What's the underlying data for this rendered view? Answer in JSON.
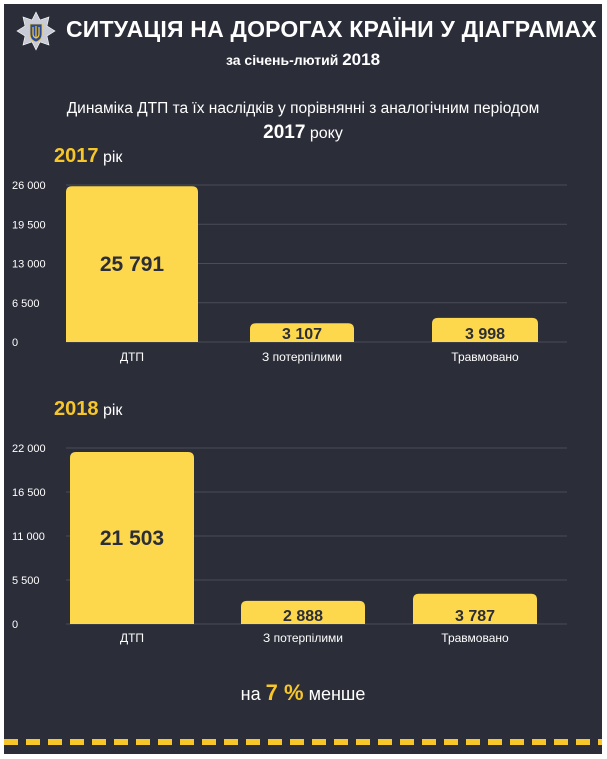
{
  "header": {
    "title": "СИТУАЦІЯ НА ДОРОГАХ КРАЇНИ У ДІАГРАМАХ",
    "period_prefix": "за січень-лютий",
    "period_year": "2018",
    "logo_icon": "police-trident-badge-icon"
  },
  "subtitle": {
    "line1": "Динаміка ДТП та їх наслідків  у порівнянні з аналогічним періодом",
    "year": "2017",
    "suffix": "року"
  },
  "charts": [
    {
      "year": "2017",
      "unit": "рік"
    },
    {
      "year": "2018",
      "unit": "рік"
    }
  ],
  "chart_data": [
    {
      "type": "bar",
      "title": "2017 рік",
      "categories": [
        "ДТП",
        "З потерпілими",
        "Травмовано"
      ],
      "values": [
        25791,
        3107,
        3998
      ],
      "value_labels": [
        "25 791",
        "3 107",
        "3 998"
      ],
      "ylim": [
        0,
        26000
      ],
      "yticks": [
        0,
        6500,
        13000,
        19500,
        26000
      ],
      "ytick_labels": [
        "0",
        "6 500",
        "13 000",
        "19 500",
        "26 000"
      ],
      "grid": true,
      "xlabel": "",
      "ylabel": ""
    },
    {
      "type": "bar",
      "title": "2018 рік",
      "categories": [
        "ДТП",
        "З потерпілими",
        "Травмовано"
      ],
      "values": [
        21503,
        2888,
        3787
      ],
      "value_labels": [
        "21 503",
        "2 888",
        "3 787"
      ],
      "ylim": [
        0,
        22000
      ],
      "yticks": [
        0,
        5500,
        11000,
        16500,
        22000
      ],
      "ytick_labels": [
        "0",
        "5 500",
        "11 000",
        "16 500",
        "22 000"
      ],
      "grid": true,
      "xlabel": "",
      "ylabel": ""
    }
  ],
  "summary": {
    "prefix": "на",
    "percent": "7 %",
    "suffix": "менше"
  },
  "colors": {
    "background": "#2b2d38",
    "accent": "#f7c72a",
    "bar": "#fdd84c",
    "grid": "#4a4c57",
    "text": "#ffffff",
    "value_text": "#2b2d38"
  }
}
